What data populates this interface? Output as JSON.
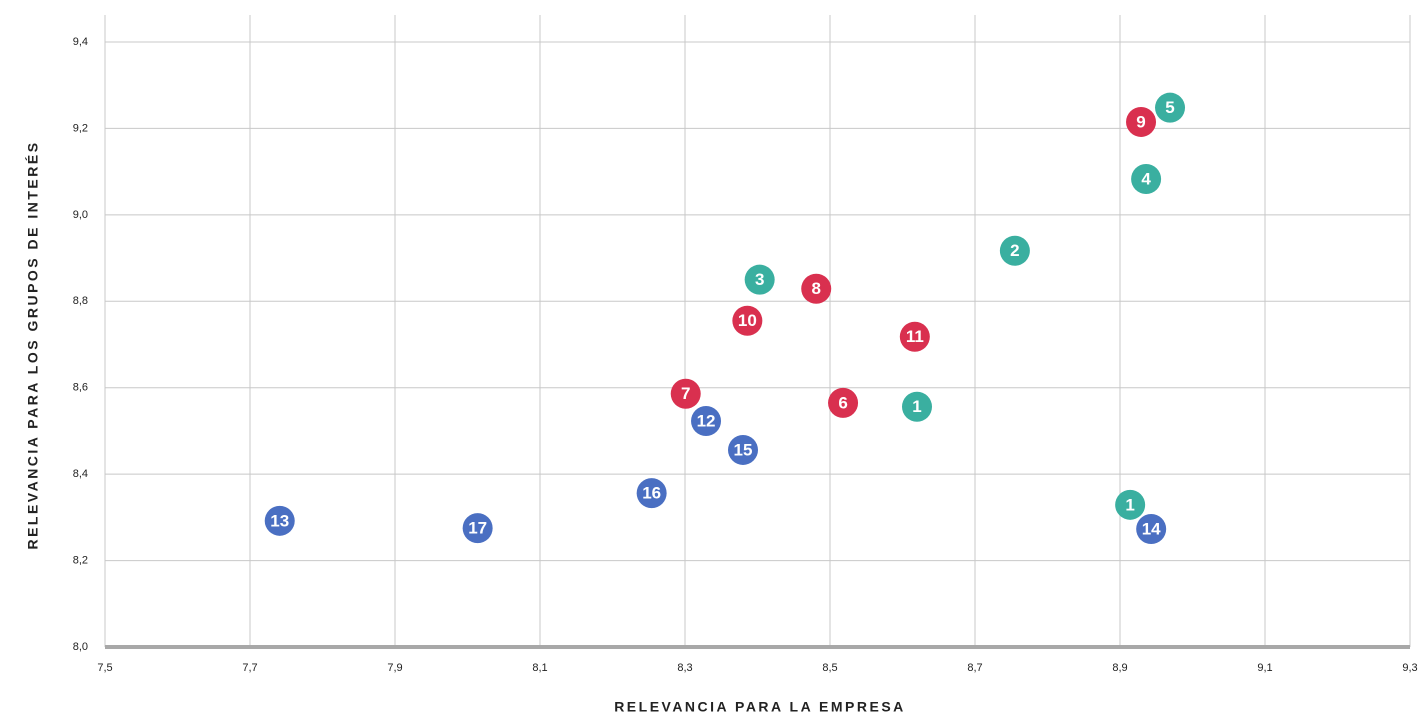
{
  "chart_data": {
    "type": "scatter",
    "xlabel": "RELEVANCIA PARA LA EMPRESA",
    "ylabel": "RELEVANCIA PARA LOS GRUPOS DE INTERÉS",
    "xlim": [
      7.5,
      9.3
    ],
    "ylim": [
      8.0,
      9.4
    ],
    "xticks": [
      {
        "value": 7.5,
        "label": "7,5"
      },
      {
        "value": 7.7,
        "label": "7,7"
      },
      {
        "value": 7.9,
        "label": "7,9"
      },
      {
        "value": 8.1,
        "label": "8,1"
      },
      {
        "value": 8.3,
        "label": "8,3"
      },
      {
        "value": 8.5,
        "label": "8,5"
      },
      {
        "value": 8.7,
        "label": "8,7"
      },
      {
        "value": 8.9,
        "label": "8,9"
      },
      {
        "value": 9.1,
        "label": "9,1"
      },
      {
        "value": 9.3,
        "label": "9,3"
      }
    ],
    "yticks": [
      {
        "value": 8.0,
        "label": "8,0"
      },
      {
        "value": 8.2,
        "label": "8,2"
      },
      {
        "value": 8.4,
        "label": "8,4"
      },
      {
        "value": 8.6,
        "label": "8,6"
      },
      {
        "value": 8.8,
        "label": "8,8"
      },
      {
        "value": 9.0,
        "label": "9,0"
      },
      {
        "value": 9.2,
        "label": "9,2"
      },
      {
        "value": 9.4,
        "label": "9,4"
      }
    ],
    "grid": true,
    "series": [
      {
        "color": "#3aafa0",
        "labels": [
          "1",
          "2",
          "3",
          "4",
          "5",
          "1"
        ],
        "x": [
          8.62,
          8.755,
          8.403,
          8.936,
          8.969,
          8.914
        ],
        "values": [
          8.556,
          8.917,
          8.85,
          9.083,
          9.248,
          8.329
        ]
      },
      {
        "color": "#d9304f",
        "labels": [
          "9",
          "8",
          "10",
          "11",
          "7",
          "6"
        ],
        "x": [
          8.929,
          8.481,
          8.386,
          8.617,
          8.301,
          8.518
        ],
        "values": [
          9.215,
          8.829,
          8.755,
          8.718,
          8.586,
          8.565
        ]
      },
      {
        "color": "#4a6fc2",
        "labels": [
          "12",
          "15",
          "16",
          "13",
          "17",
          "14"
        ],
        "x": [
          8.329,
          8.38,
          8.254,
          7.741,
          8.014,
          8.943
        ],
        "values": [
          8.523,
          8.456,
          8.356,
          8.292,
          8.275,
          8.273
        ]
      }
    ]
  }
}
